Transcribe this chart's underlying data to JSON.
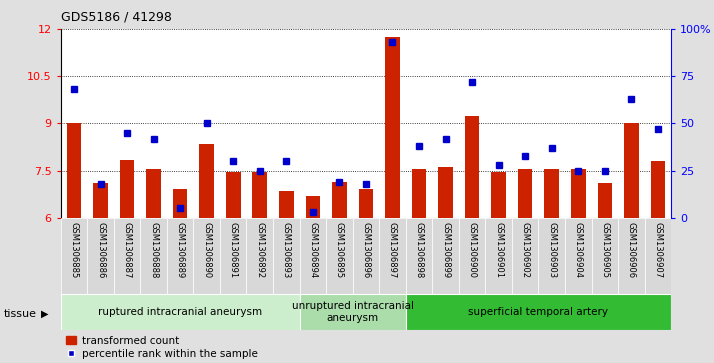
{
  "title": "GDS5186 / 41298",
  "samples": [
    "GSM1306885",
    "GSM1306886",
    "GSM1306887",
    "GSM1306888",
    "GSM1306889",
    "GSM1306890",
    "GSM1306891",
    "GSM1306892",
    "GSM1306893",
    "GSM1306894",
    "GSM1306895",
    "GSM1306896",
    "GSM1306897",
    "GSM1306898",
    "GSM1306899",
    "GSM1306900",
    "GSM1306901",
    "GSM1306902",
    "GSM1306903",
    "GSM1306904",
    "GSM1306905",
    "GSM1306906",
    "GSM1306907"
  ],
  "bar_values": [
    9.0,
    7.1,
    7.85,
    7.55,
    6.9,
    8.35,
    7.45,
    7.45,
    6.85,
    6.7,
    7.15,
    6.9,
    11.75,
    7.55,
    7.6,
    9.25,
    7.45,
    7.55,
    7.55,
    7.55,
    7.1,
    9.0,
    7.8
  ],
  "dot_values_pct": [
    68,
    18,
    45,
    42,
    5,
    50,
    30,
    25,
    30,
    3,
    19,
    18,
    93,
    38,
    42,
    72,
    28,
    33,
    37,
    25,
    25,
    63,
    47
  ],
  "ylim_left": [
    6,
    12
  ],
  "ylim_right": [
    0,
    100
  ],
  "yticks_left": [
    6,
    7.5,
    9,
    10.5,
    12
  ],
  "yticks_right": [
    0,
    25,
    50,
    75,
    100
  ],
  "ytick_labels_right": [
    "0",
    "25",
    "50",
    "75",
    "100%"
  ],
  "bar_color": "#CC2200",
  "dot_color": "#0000CC",
  "fig_bg": "#E0E0E0",
  "plot_bg": "#FFFFFF",
  "groups": [
    {
      "label": "ruptured intracranial aneurysm",
      "start": 0,
      "end": 9,
      "color": "#CCEECC"
    },
    {
      "label": "unruptured intracranial\naneurysm",
      "start": 9,
      "end": 13,
      "color": "#AADDAA"
    },
    {
      "label": "superficial temporal artery",
      "start": 13,
      "end": 23,
      "color": "#33BB33"
    }
  ],
  "xtick_bg": "#D8D8D8",
  "tissue_label": "tissue",
  "legend_bar_label": "transformed count",
  "legend_dot_label": "percentile rank within the sample",
  "title_fontsize": 9,
  "tick_fontsize": 8,
  "label_fontsize": 7,
  "group_fontsize": 7.5
}
